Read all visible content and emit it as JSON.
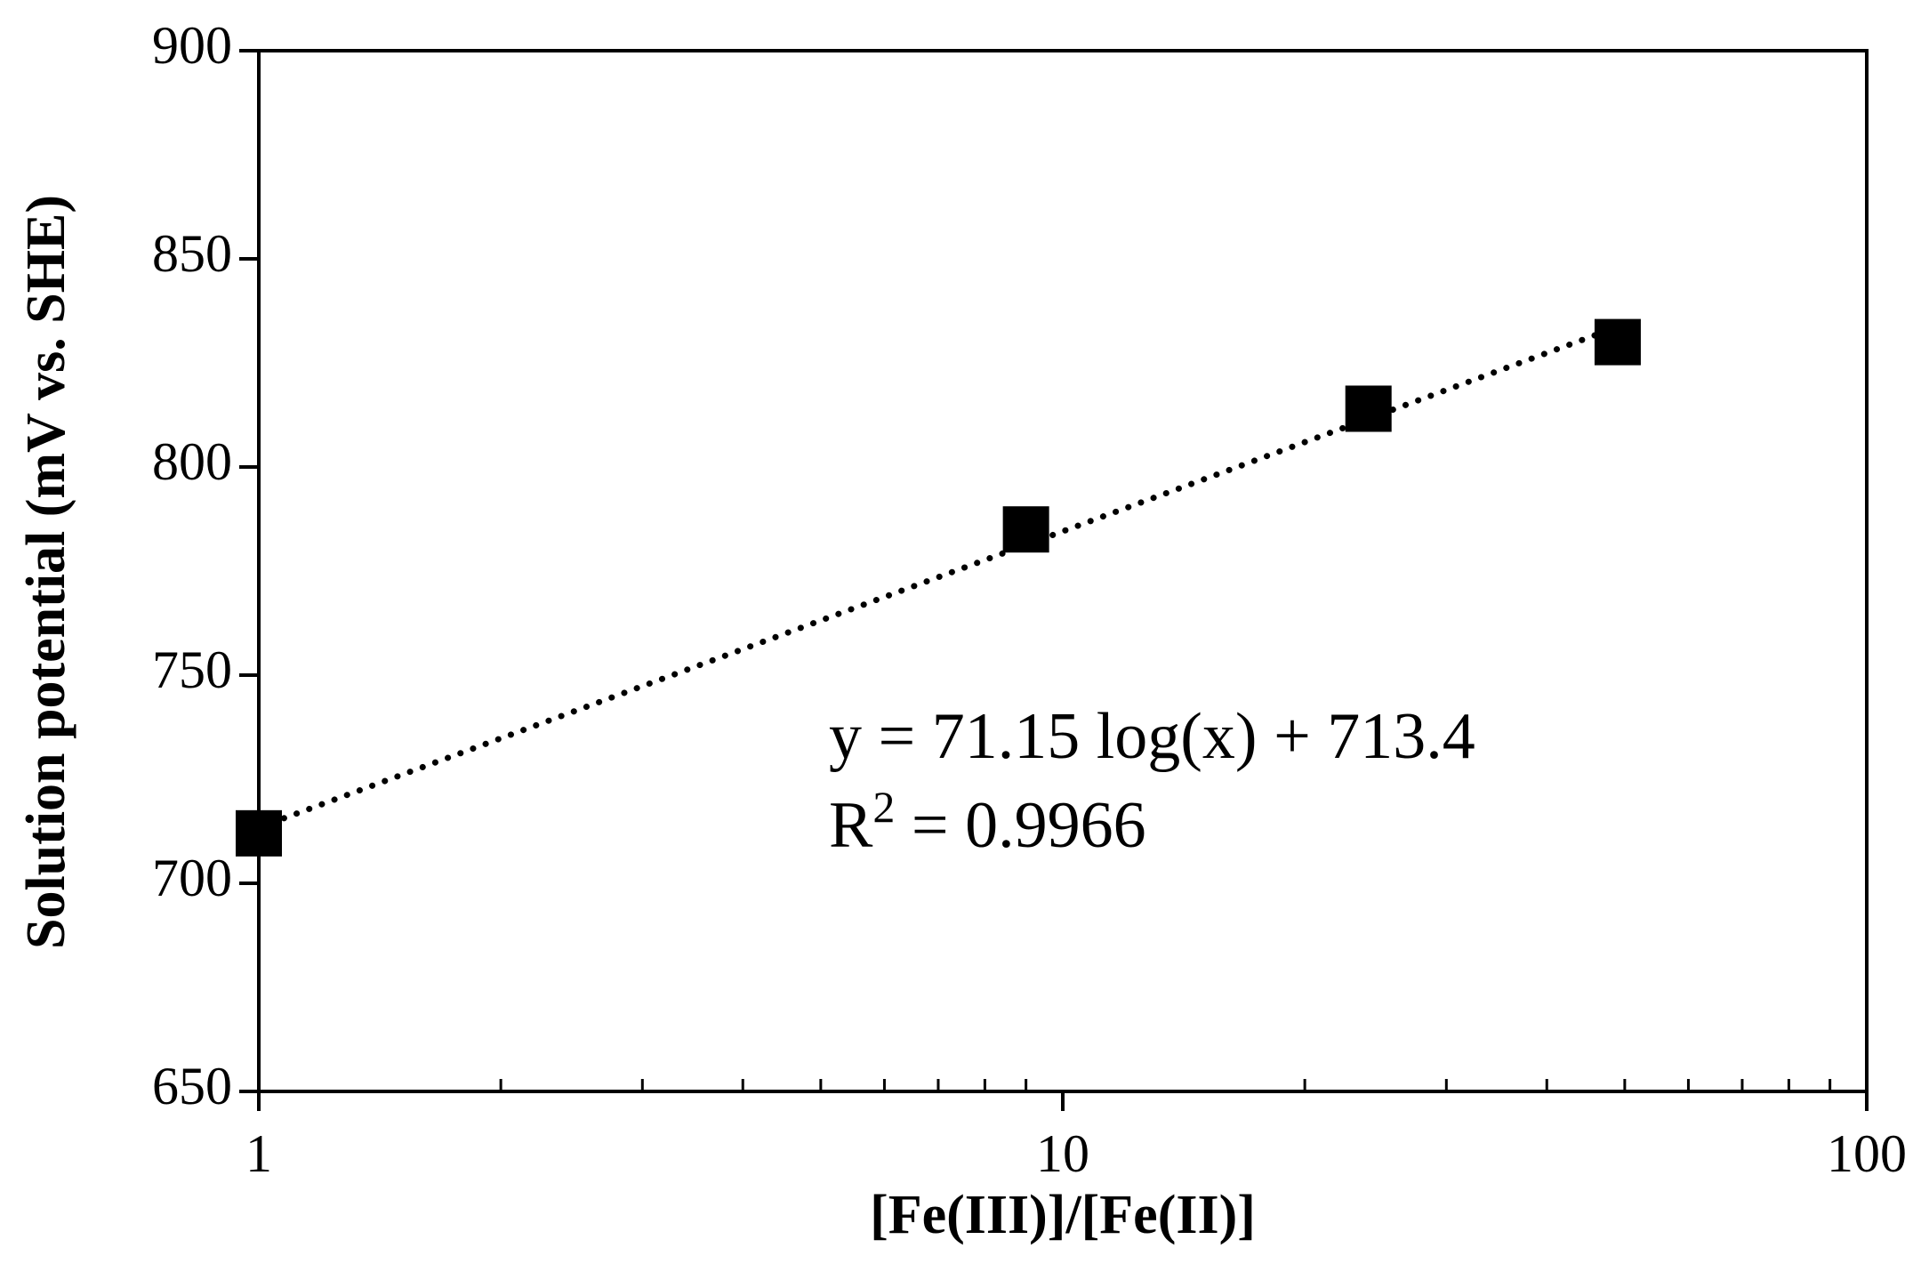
{
  "chart_data": {
    "type": "scatter",
    "x_label": "[Fe(III)]/[Fe(II)]",
    "y_label": "Solution potential (mV vs. SHE)",
    "x": [
      1,
      9,
      24,
      49
    ],
    "series": [
      {
        "color": "#000000",
        "values": [
          712,
          785,
          814,
          830
        ]
      }
    ],
    "xlim": [
      1,
      100
    ],
    "xticks": [
      1,
      10,
      100
    ],
    "xscale": "log",
    "minor_ticks": true,
    "ylim": [
      650,
      900
    ],
    "yticks": [
      650,
      700,
      750,
      800,
      850,
      900
    ],
    "trendline": {
      "kind": "log",
      "slope": 71.15,
      "intercept": 713.4,
      "color": "#000000"
    },
    "equation": "y = 71.15 log(x) + 713.4",
    "r2_label": {
      "base": "R",
      "sup": "2",
      "rest": " = 0.9966"
    }
  }
}
